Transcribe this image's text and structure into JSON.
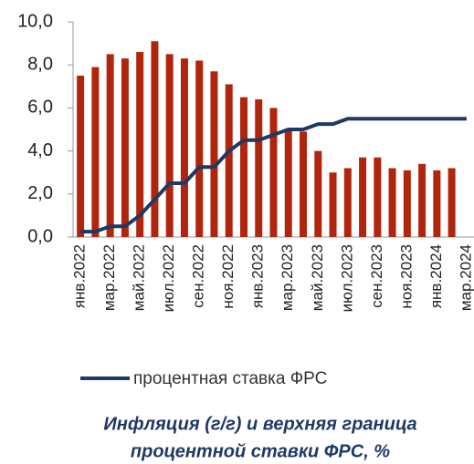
{
  "chart_data": {
    "type": "bar_line",
    "title": [
      "Инфляция (г/г) и верхняя граница",
      "процентной ставки ФРС,  %"
    ],
    "categories": [
      "янв.2022",
      null,
      "мар.2022",
      null,
      "май.2022",
      null,
      "июл.2022",
      null,
      "сен.2022",
      null,
      "ноя.2022",
      null,
      "янв.2023",
      null,
      "мар.2023",
      null,
      "май.2023",
      null,
      "июл.2023",
      null,
      "сен.2023",
      null,
      "ноя.2023",
      null,
      "янв.2024",
      null,
      "мар.2024"
    ],
    "series": [
      {
        "type": "bar",
        "color": "#b0260c",
        "values": [
          7.5,
          7.9,
          8.5,
          8.3,
          8.6,
          9.1,
          8.5,
          8.3,
          8.2,
          7.7,
          7.1,
          6.5,
          6.4,
          6.0,
          5.0,
          4.9,
          4.0,
          3.0,
          3.2,
          3.7,
          3.7,
          3.2,
          3.1,
          3.4,
          3.1,
          3.2,
          null
        ]
      },
      {
        "type": "line",
        "name": "процентная ставка ФРС",
        "color": "#1f3864",
        "values": [
          0.25,
          0.25,
          0.5,
          0.5,
          1.0,
          1.75,
          2.5,
          2.5,
          3.25,
          3.25,
          4.0,
          4.5,
          4.5,
          4.75,
          5.0,
          5.0,
          5.25,
          5.25,
          5.5,
          5.5,
          5.5,
          5.5,
          5.5,
          5.5,
          5.5,
          5.5,
          5.5
        ]
      }
    ],
    "ylim": [
      0,
      10
    ],
    "yticks": [
      {
        "value": 0,
        "label": "0,0"
      },
      {
        "value": 2,
        "label": "2,0"
      },
      {
        "value": 4,
        "label": "4,0"
      },
      {
        "value": 6,
        "label": "6,0"
      },
      {
        "value": 8,
        "label": "8,0"
      },
      {
        "value": 10,
        "label": "10,0"
      }
    ],
    "grid": false
  }
}
